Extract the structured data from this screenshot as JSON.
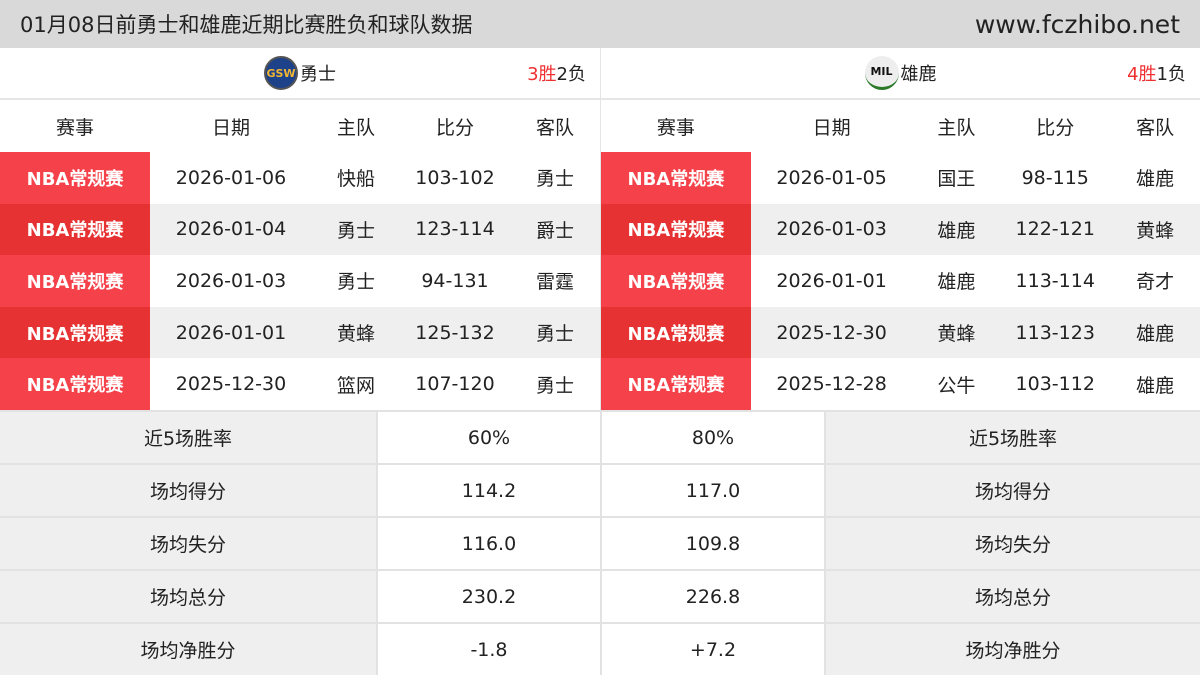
{
  "header": {
    "title": "01月08日前勇士和雄鹿近期比赛胜负和球队数据",
    "site": "www.fczhibo.net"
  },
  "columns": [
    "赛事",
    "日期",
    "主队",
    "比分",
    "客队"
  ],
  "left": {
    "team": "勇士",
    "logo": "GSW",
    "wins": "3胜",
    "losses": "2负",
    "games": [
      [
        "NBA常规赛",
        "2026-01-06",
        "快船",
        "103-102",
        "勇士"
      ],
      [
        "NBA常规赛",
        "2026-01-04",
        "勇士",
        "123-114",
        "爵士"
      ],
      [
        "NBA常规赛",
        "2026-01-03",
        "勇士",
        "94-131",
        "雷霆"
      ],
      [
        "NBA常规赛",
        "2026-01-01",
        "黄蜂",
        "125-132",
        "勇士"
      ],
      [
        "NBA常规赛",
        "2025-12-30",
        "篮网",
        "107-120",
        "勇士"
      ]
    ]
  },
  "right": {
    "team": "雄鹿",
    "logo": "MIL",
    "wins": "4胜",
    "losses": "1负",
    "games": [
      [
        "NBA常规赛",
        "2026-01-05",
        "国王",
        "98-115",
        "雄鹿"
      ],
      [
        "NBA常规赛",
        "2026-01-03",
        "雄鹿",
        "122-121",
        "黄蜂"
      ],
      [
        "NBA常规赛",
        "2026-01-01",
        "雄鹿",
        "113-114",
        "奇才"
      ],
      [
        "NBA常规赛",
        "2025-12-30",
        "黄蜂",
        "113-123",
        "雄鹿"
      ],
      [
        "NBA常规赛",
        "2025-12-28",
        "公牛",
        "103-112",
        "雄鹿"
      ]
    ]
  },
  "stats": [
    [
      "近5场胜率",
      "60%",
      "80%"
    ],
    [
      "场均得分",
      "114.2",
      "117.0"
    ],
    [
      "场均失分",
      "116.0",
      "109.8"
    ],
    [
      "场均总分",
      "230.2",
      "226.8"
    ],
    [
      "场均净胜分",
      "-1.8",
      "+7.2"
    ]
  ],
  "colors": {
    "event_red": "#f5424a",
    "event_red_alt": "#e63232",
    "win": "#f03030"
  }
}
